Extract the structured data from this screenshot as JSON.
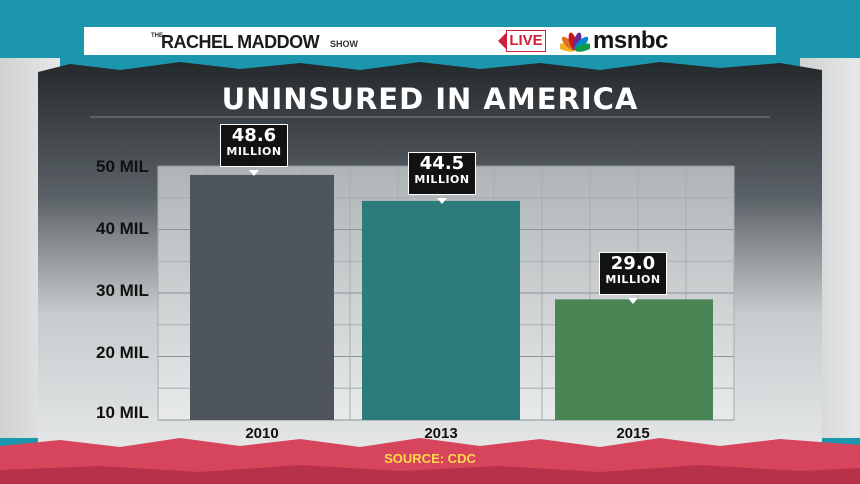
{
  "banner": {
    "show_prefix": "THE",
    "show_name": "RACHEL MADDOW",
    "show_suffix": "SHOW",
    "live_label": "LIVE",
    "network": "msnbc"
  },
  "colors": {
    "background_teal": "#1c96ad",
    "panel_dark": "#2c3236",
    "live_red": "#d01f3c",
    "bar_2010": "#4f555d",
    "bar_2013": "#2b7c7a",
    "bar_2015": "#4a8556",
    "source_yellow": "#ffd84a"
  },
  "footer": {
    "source": "SOURCE: CDC"
  },
  "chart_data": {
    "type": "bar",
    "title": "UNINSURED IN AMERICA",
    "categories": [
      "2010",
      "2013",
      "2015"
    ],
    "values": [
      48.6,
      44.5,
      29.0
    ],
    "value_labels": [
      "48.6",
      "44.5",
      "29.0"
    ],
    "value_unit_label": "MILLION",
    "ytick_labels": [
      "50 MIL",
      "40 MIL",
      "30 MIL",
      "20 MIL",
      "10 MIL"
    ],
    "ytick_values": [
      50,
      40,
      30,
      20,
      10
    ],
    "ylim": [
      10,
      50
    ],
    "xlabel": "",
    "ylabel": "",
    "grid": true,
    "legend": "none",
    "bar_colors": [
      "#4f555d",
      "#2b7c7a",
      "#4a8556"
    ]
  }
}
